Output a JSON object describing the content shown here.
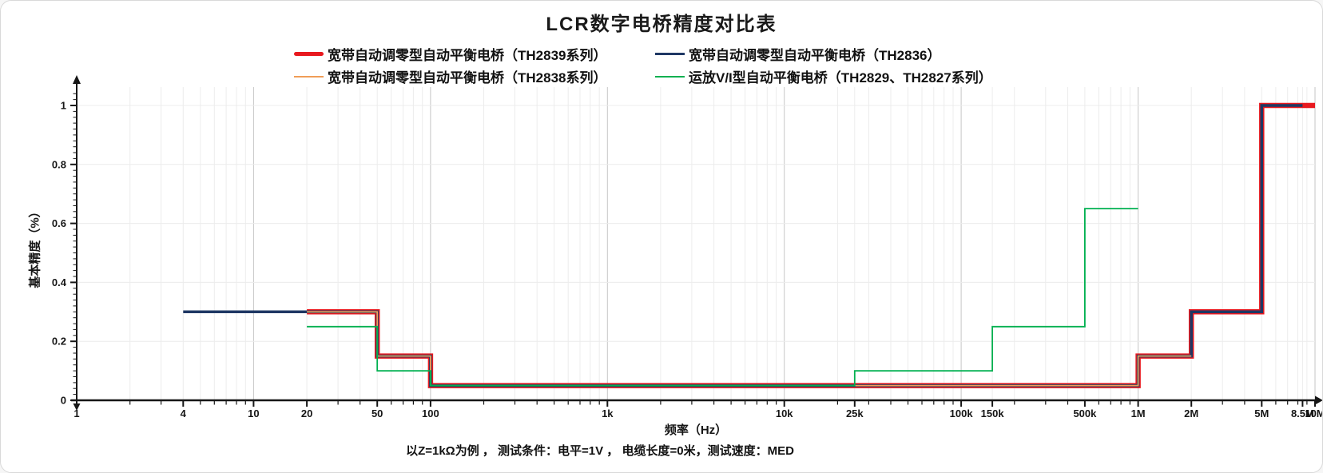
{
  "page": {
    "title": "LCR数字电桥精度对比表",
    "footnote": "以Z=1kΩ为例 ， 测试条件：电平=1V ， 电缆长度=0米，测试速度：MED"
  },
  "chart_data": {
    "type": "line",
    "subtype": "step",
    "title": "LCR数字电桥精度对比表",
    "xlabel": "频率（Hz）",
    "ylabel": "基本精度（%）",
    "x_scale": "log",
    "x_range_hz": [
      1,
      10000000
    ],
    "ylim": [
      0,
      1.05
    ],
    "grid": true,
    "legend_position": "top-center",
    "y_ticks": [
      0,
      0.2,
      0.4,
      0.6,
      0.8,
      1
    ],
    "x_ticks": [
      {
        "hz": 1,
        "label": "1"
      },
      {
        "hz": 4,
        "label": "4"
      },
      {
        "hz": 10,
        "label": "10"
      },
      {
        "hz": 20,
        "label": "20"
      },
      {
        "hz": 50,
        "label": "50"
      },
      {
        "hz": 100,
        "label": "100"
      },
      {
        "hz": 1000,
        "label": "1k"
      },
      {
        "hz": 10000,
        "label": "10k"
      },
      {
        "hz": 25000,
        "label": "25k"
      },
      {
        "hz": 100000,
        "label": "100k"
      },
      {
        "hz": 150000,
        "label": "150k"
      },
      {
        "hz": 500000,
        "label": "500k"
      },
      {
        "hz": 1000000,
        "label": "1M"
      },
      {
        "hz": 2000000,
        "label": "2M"
      },
      {
        "hz": 5000000,
        "label": "5M"
      },
      {
        "hz": 8500000,
        "label": "8.5M"
      },
      {
        "hz": 10000000,
        "label": "10M"
      }
    ],
    "extra_minor_ticks_hz": [
      25000,
      150000,
      8500000
    ],
    "series": [
      {
        "name": "宽带自动调零型自动平衡电桥（TH2839系列）",
        "color": "#e8191f",
        "line_width": 6.5,
        "points": [
          [
            20,
            0.3
          ],
          [
            50,
            0.3
          ],
          [
            50,
            0.15
          ],
          [
            100,
            0.15
          ],
          [
            100,
            0.05
          ],
          [
            1000000,
            0.05
          ],
          [
            1000000,
            0.15
          ],
          [
            2000000,
            0.15
          ],
          [
            2000000,
            0.3
          ],
          [
            5000000,
            0.3
          ],
          [
            5000000,
            1.0
          ],
          [
            10000000,
            1.0
          ]
        ]
      },
      {
        "name": "宽带自动调零型自动平衡电桥（TH2836）",
        "color": "#1f3864",
        "line_width": 3.5,
        "points": [
          [
            4,
            0.3
          ],
          [
            50,
            0.3
          ],
          [
            50,
            0.15
          ],
          [
            100,
            0.15
          ],
          [
            100,
            0.05
          ],
          [
            1000000,
            0.05
          ],
          [
            1000000,
            0.15
          ],
          [
            2000000,
            0.15
          ],
          [
            2000000,
            0.3
          ],
          [
            5000000,
            0.3
          ],
          [
            5000000,
            1.0
          ],
          [
            8500000,
            1.0
          ]
        ]
      },
      {
        "name": "宽带自动调零型自动平衡电桥（TH2838系列）",
        "color": "#f09d58",
        "line_width": 1.8,
        "points": [
          [
            20,
            0.3
          ],
          [
            50,
            0.3
          ],
          [
            50,
            0.15
          ],
          [
            100,
            0.15
          ],
          [
            100,
            0.05
          ],
          [
            1000000,
            0.05
          ],
          [
            1000000,
            0.15
          ],
          [
            2000000,
            0.15
          ]
        ]
      },
      {
        "name": "运放V/I型自动平衡电桥（TH2829、TH2827系列）",
        "color": "#00b050",
        "line_width": 1.8,
        "points": [
          [
            20,
            0.25
          ],
          [
            50,
            0.25
          ],
          [
            50,
            0.1
          ],
          [
            100,
            0.1
          ],
          [
            100,
            0.05
          ],
          [
            25000,
            0.05
          ],
          [
            25000,
            0.1
          ],
          [
            150000,
            0.1
          ],
          [
            150000,
            0.25
          ],
          [
            500000,
            0.25
          ],
          [
            500000,
            0.65
          ],
          [
            1000000,
            0.65
          ]
        ]
      }
    ]
  }
}
